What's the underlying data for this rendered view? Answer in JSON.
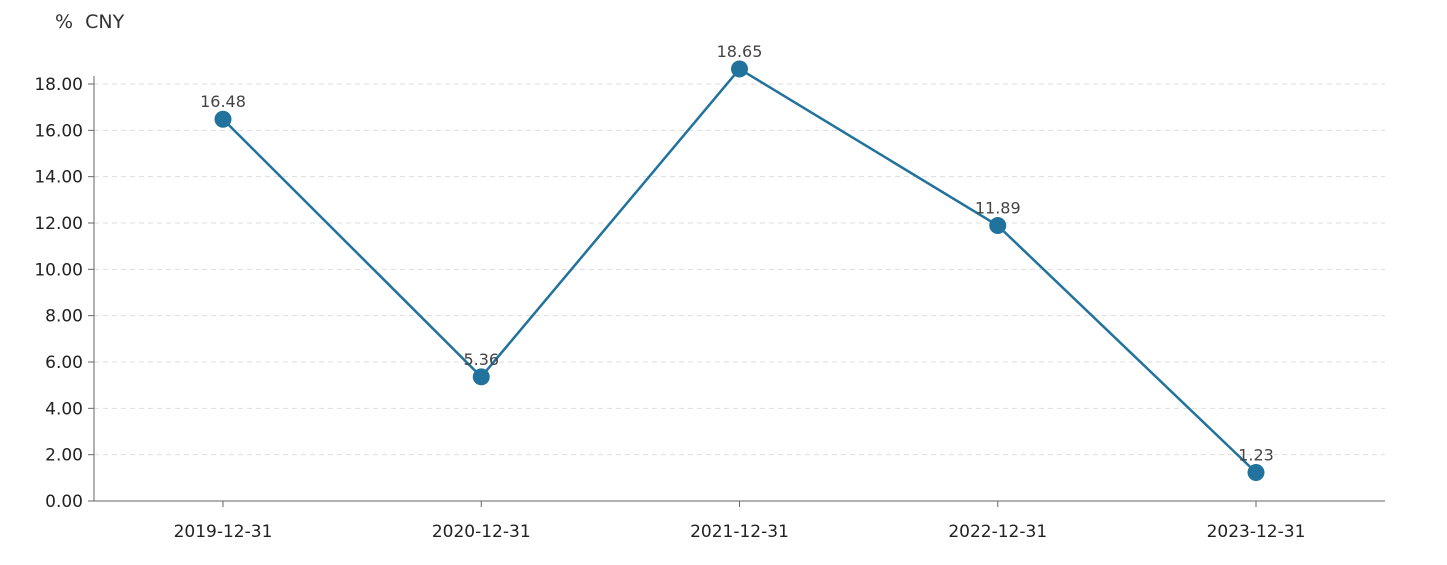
{
  "chart_data": {
    "type": "line",
    "unit_label": "%  CNY",
    "categories": [
      "2019-12-31",
      "2020-12-31",
      "2021-12-31",
      "2022-12-31",
      "2023-12-31"
    ],
    "series": [
      {
        "values": [
          16.48,
          5.36,
          18.65,
          11.89,
          1.23
        ],
        "labels": [
          "16.48",
          "5.36",
          "18.65",
          "11.89",
          "1.23"
        ]
      }
    ],
    "y_ticks": [
      "0.00",
      "2.00",
      "4.00",
      "6.00",
      "8.00",
      "10.00",
      "12.00",
      "14.00",
      "16.00",
      "18.00"
    ],
    "ylim": [
      0,
      18
    ],
    "grid": true,
    "title": "",
    "xlabel": "",
    "ylabel": ""
  },
  "colors": {
    "series": "#21729c",
    "axis": "#666666",
    "grid": "#dddddd"
  }
}
